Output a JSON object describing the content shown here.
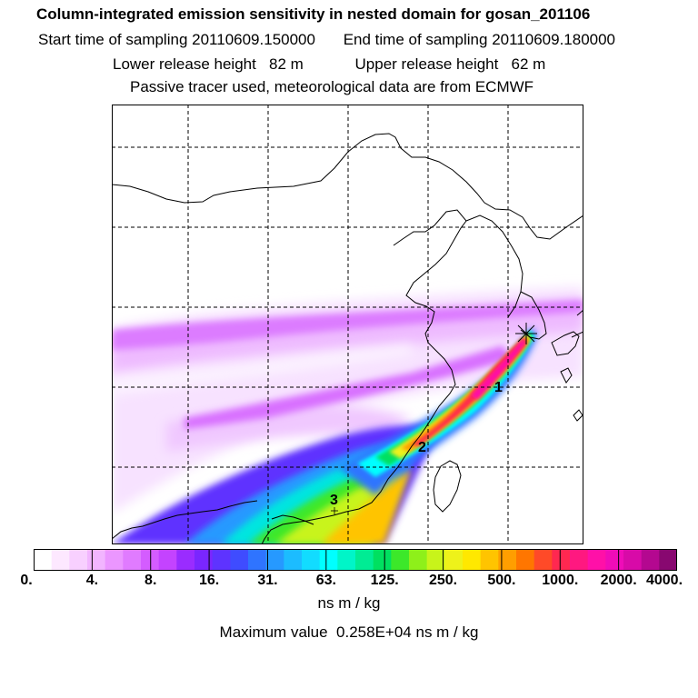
{
  "header": {
    "title": "Column-integrated emission sensitivity in nested domain for gosan_201106",
    "start_label": "Start time of sampling",
    "start_value": "20110609.150000",
    "end_label": "End time of sampling",
    "end_value": "20110609.180000",
    "lower_label": "Lower release height",
    "lower_value": "82 m",
    "upper_label": "Upper release height",
    "upper_value": "62 m",
    "note": "Passive tracer used, meteorological data are from ECMWF"
  },
  "map": {
    "markers": [
      {
        "label": "1"
      },
      {
        "label": "2"
      },
      {
        "label": "3"
      }
    ]
  },
  "colorbar": {
    "tick_labels": [
      "0.",
      "4.",
      "8.",
      "16.",
      "31.",
      "63.",
      "125.",
      "250.",
      "500.",
      "1000.",
      "2000.",
      "4000."
    ],
    "colors": [
      "#ffffff",
      "#fde8ff",
      "#f8d0ff",
      "#f2b5ff",
      "#eb96ff",
      "#e07bff",
      "#d45cff",
      "#c443ff",
      "#9a2cff",
      "#7a26ff",
      "#5e33ff",
      "#3f4cff",
      "#2f74ff",
      "#2699ff",
      "#1cbcff",
      "#12dcff",
      "#00ffff",
      "#00f5c8",
      "#00ec94",
      "#00e060",
      "#3ce82a",
      "#8ef01a",
      "#c8f41a",
      "#eef21a",
      "#ffe800",
      "#ffc400",
      "#ff9e00",
      "#ff7600",
      "#ff4a28",
      "#ff2850",
      "#ff1880",
      "#ff10a8",
      "#ef0cb8",
      "#d80aa8",
      "#b40890",
      "#880870"
    ],
    "unit": "ns m / kg"
  },
  "max_label": "Maximum value",
  "max_value": "0.258E+04 ns m / kg"
}
